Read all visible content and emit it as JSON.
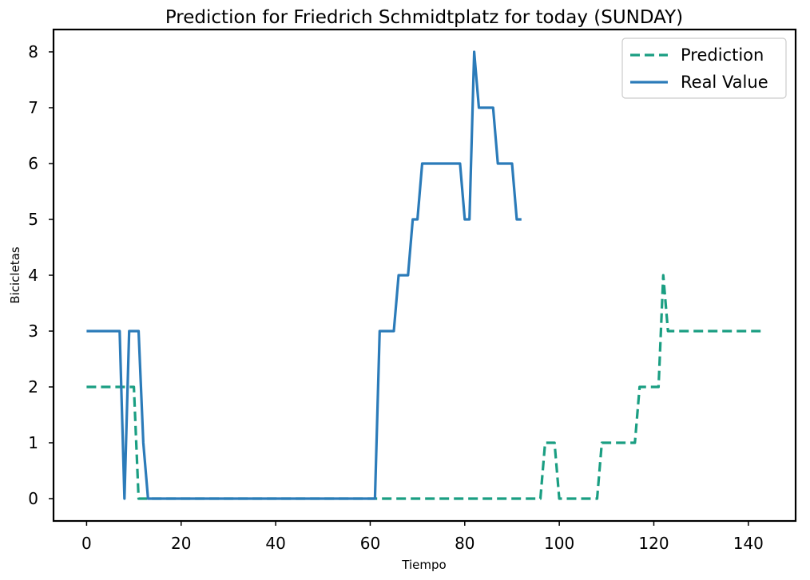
{
  "chart_data": {
    "type": "line",
    "title": "Prediction for Friedrich Schmidtplatz for today (SUNDAY)",
    "xlabel": "Tiempo",
    "ylabel": "Bicicletas",
    "xlim": [
      -7,
      150
    ],
    "ylim": [
      -0.4,
      8.4
    ],
    "xticks": [
      0,
      20,
      40,
      60,
      80,
      100,
      120,
      140
    ],
    "yticks": [
      0,
      1,
      2,
      3,
      4,
      5,
      6,
      7,
      8
    ],
    "grid": false,
    "legend_position": "top-right",
    "series": [
      {
        "name": "Prediction",
        "style": "dashed",
        "color": "#1a9e82",
        "points": [
          [
            0,
            2
          ],
          [
            10,
            2
          ],
          [
            11,
            0
          ],
          [
            96,
            0
          ],
          [
            97,
            1
          ],
          [
            99,
            1
          ],
          [
            100,
            0
          ],
          [
            108,
            0
          ],
          [
            109,
            1
          ],
          [
            116,
            1
          ],
          [
            117,
            2
          ],
          [
            121,
            2
          ],
          [
            122,
            4
          ],
          [
            123,
            3
          ],
          [
            143,
            3
          ]
        ]
      },
      {
        "name": "Real Value",
        "style": "solid",
        "color": "#2b7bb9",
        "points": [
          [
            0,
            3
          ],
          [
            7,
            3
          ],
          [
            8,
            0
          ],
          [
            9,
            3
          ],
          [
            11,
            3
          ],
          [
            12,
            1
          ],
          [
            13,
            0
          ],
          [
            61,
            0
          ],
          [
            62,
            3
          ],
          [
            65,
            3
          ],
          [
            66,
            4
          ],
          [
            68,
            4
          ],
          [
            69,
            5
          ],
          [
            70,
            5
          ],
          [
            71,
            6
          ],
          [
            79,
            6
          ],
          [
            80,
            5
          ],
          [
            81,
            5
          ],
          [
            82,
            8
          ],
          [
            83,
            7
          ],
          [
            86,
            7
          ],
          [
            87,
            6
          ],
          [
            90,
            6
          ],
          [
            91,
            5
          ],
          [
            92,
            5
          ]
        ]
      }
    ]
  }
}
